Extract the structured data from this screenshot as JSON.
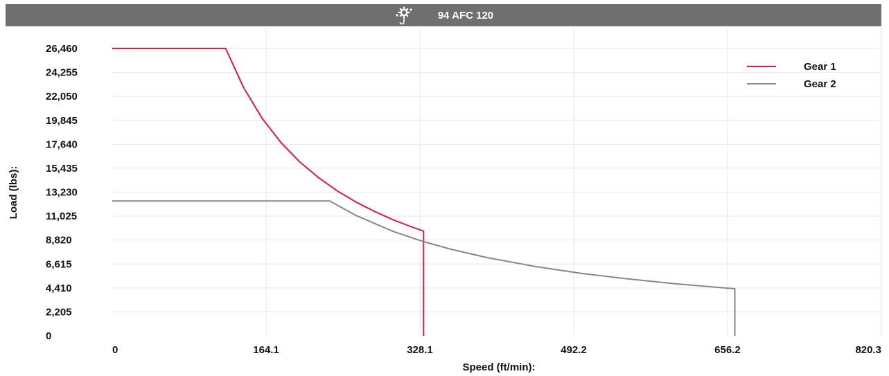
{
  "header": {
    "title": "94 AFC 120",
    "icon": "crane-hook-gear-icon"
  },
  "colors": {
    "header_bg": "#6f6f6f",
    "gear1": "#e4173c",
    "gear2": "#878787",
    "grid": "#e6e6e6",
    "plot_bg": "#ffffff"
  },
  "chart_data": {
    "type": "line",
    "title": "94 AFC 120",
    "xlabel": "Speed (ft/min):",
    "ylabel": "Load (lbs):",
    "xlim": [
      0,
      820.3
    ],
    "ylim": [
      0,
      26460
    ],
    "x_ticks": [
      0,
      164.1,
      328.1,
      492.2,
      656.2,
      820.3
    ],
    "x_tick_labels": [
      "0",
      "164.1",
      "328.1",
      "492.2",
      "656.2",
      "820.3"
    ],
    "y_ticks": [
      0,
      2205,
      4410,
      6615,
      8820,
      11025,
      13230,
      15435,
      17640,
      19845,
      22050,
      24255,
      26460
    ],
    "y_tick_labels": [
      "0",
      "2,205",
      "4,410",
      "6,615",
      "8,820",
      "11,025",
      "13,230",
      "15,435",
      "17,640",
      "19,845",
      "22,050",
      "24,255",
      "26,460"
    ],
    "grid": true,
    "legend_position": "top-right",
    "series": [
      {
        "name": "Gear 1",
        "color": "#e4173c",
        "x": [
          0,
          121,
          140,
          160,
          180,
          200,
          220,
          240,
          260,
          280,
          300,
          320,
          332,
          332
        ],
        "y": [
          26460,
          26460,
          22870,
          20010,
          17790,
          16010,
          14560,
          13340,
          12320,
          11440,
          10670,
          10010,
          9640,
          0
        ]
      },
      {
        "name": "Gear 2",
        "color": "#878787",
        "x": [
          0,
          232,
          260,
          300,
          332,
          360,
          400,
          450,
          500,
          550,
          600,
          650,
          664,
          664
        ],
        "y": [
          12420,
          12420,
          11080,
          9600,
          8680,
          8000,
          7200,
          6400,
          5760,
          5240,
          4800,
          4430,
          4340,
          0
        ]
      }
    ]
  }
}
